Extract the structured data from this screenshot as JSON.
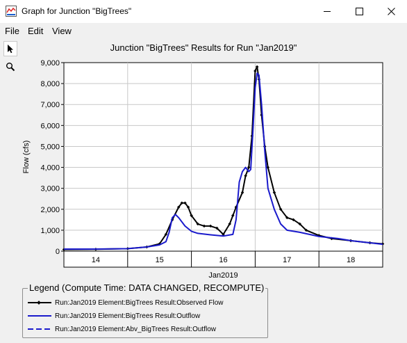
{
  "window": {
    "title": "Graph for Junction \"BigTrees\""
  },
  "menu": {
    "items": [
      "File",
      "Edit",
      "View"
    ]
  },
  "toolbar": {
    "tools": [
      "pointer-icon",
      "zoom-icon"
    ]
  },
  "chart_data": {
    "type": "line",
    "title": "Junction \"BigTrees\" Results for Run \"Jan2019\"",
    "xlabel": "Jan2019",
    "ylabel": "Flow (cfs)",
    "xlim": [
      13.5,
      18.5
    ],
    "ylim": [
      0,
      9000
    ],
    "yticks": [
      0,
      1000,
      2000,
      3000,
      4000,
      5000,
      6000,
      7000,
      8000,
      9000
    ],
    "ytick_labels": [
      "0",
      "1,000",
      "2,000",
      "3,000",
      "4,000",
      "5,000",
      "6,000",
      "7,000",
      "8,000",
      "9,000"
    ],
    "xticks": [
      14,
      15,
      16,
      17,
      18
    ],
    "xtick_labels": [
      "14",
      "15",
      "16",
      "17",
      "18"
    ],
    "grid": true,
    "series": [
      {
        "name": "Run:Jan2019 Element:BigTrees Result:Observed Flow",
        "color": "#000000",
        "style": "solid-markers",
        "x": [
          13.5,
          14.0,
          14.5,
          14.8,
          15.0,
          15.1,
          15.2,
          15.3,
          15.35,
          15.4,
          15.45,
          15.5,
          15.6,
          15.7,
          15.8,
          15.9,
          16.0,
          16.1,
          16.15,
          16.2,
          16.3,
          16.35,
          16.4,
          16.45,
          16.5,
          16.53,
          16.56,
          16.6,
          16.65,
          16.7,
          16.8,
          16.9,
          17.0,
          17.1,
          17.2,
          17.3,
          17.5,
          17.7,
          18.0,
          18.3,
          18.5
        ],
        "y": [
          80,
          90,
          120,
          200,
          350,
          800,
          1500,
          2100,
          2300,
          2300,
          2100,
          1700,
          1300,
          1200,
          1200,
          1100,
          800,
          1300,
          1700,
          2100,
          2800,
          3600,
          4000,
          5500,
          8600,
          8800,
          8200,
          6500,
          5000,
          4000,
          2800,
          2000,
          1600,
          1500,
          1300,
          1000,
          750,
          600,
          500,
          400,
          350
        ]
      },
      {
        "name": "Run:Jan2019 Element:BigTrees Result:Outflow",
        "color": "#1a1acc",
        "style": "solid",
        "x": [
          13.5,
          14.0,
          14.5,
          14.8,
          15.0,
          15.1,
          15.15,
          15.2,
          15.25,
          15.3,
          15.4,
          15.5,
          15.6,
          15.8,
          16.0,
          16.15,
          16.2,
          16.25,
          16.3,
          16.35,
          16.4,
          16.43,
          16.47,
          16.5,
          16.53,
          16.56,
          16.6,
          16.65,
          16.7,
          16.8,
          16.9,
          17.0,
          17.2,
          17.5,
          17.8,
          18.0,
          18.3,
          18.5
        ],
        "y": [
          100,
          100,
          120,
          200,
          300,
          450,
          900,
          1600,
          1750,
          1600,
          1200,
          950,
          850,
          780,
          720,
          800,
          1500,
          3300,
          3800,
          4000,
          3800,
          3900,
          6000,
          7800,
          8500,
          8400,
          7000,
          4800,
          3000,
          2000,
          1300,
          1000,
          900,
          700,
          600,
          500,
          400,
          330
        ]
      },
      {
        "name": "Run:Jan2019 Element:Abv_BigTrees Result:Outflow",
        "color": "#1a1acc",
        "style": "dashed",
        "x": [],
        "y": []
      }
    ]
  },
  "legend": {
    "title": "Legend (Compute Time: DATA CHANGED, RECOMPUTE)"
  }
}
